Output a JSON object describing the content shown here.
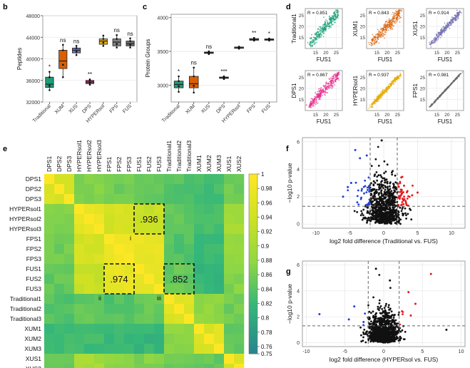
{
  "chart_data": [
    {
      "panel": "b",
      "type": "box",
      "ylabel": "Peptides",
      "ylim": [
        32000,
        48000
      ],
      "yticks": [
        "32000",
        "36000",
        "40000",
        "44000",
        "48000"
      ],
      "categories": [
        "Traditional",
        "XUM",
        "XUS",
        "DPS",
        "HYPERsol",
        "FPS",
        "FUS"
      ],
      "colors": [
        "#1b9e77",
        "#d95f02",
        "#7570b3",
        "#b3316e",
        "#e6ab02",
        "#7f7f7f",
        "#6e6e6e"
      ],
      "boxes": [
        {
          "min": 34200,
          "q1": 34700,
          "median": 35300,
          "q3": 36600,
          "max": 37600
        },
        {
          "min": 36600,
          "q1": 38200,
          "median": 39600,
          "q3": 41600,
          "max": 42600
        },
        {
          "min": 40700,
          "q1": 41100,
          "median": 41600,
          "q3": 42000,
          "max": 42400
        },
        {
          "min": 35200,
          "q1": 35400,
          "median": 35700,
          "q3": 36000,
          "max": 36200
        },
        {
          "min": 42400,
          "q1": 42700,
          "median": 43300,
          "q3": 43700,
          "max": 44300
        },
        {
          "min": 42100,
          "q1": 42400,
          "median": 43100,
          "q3": 43700,
          "max": 44400
        },
        {
          "min": 42100,
          "q1": 42400,
          "median": 42800,
          "q3": 43300,
          "max": 43800
        }
      ],
      "significance": [
        "*",
        "ns",
        "ns",
        "**",
        "",
        "ns",
        "ns"
      ]
    },
    {
      "panel": "c",
      "type": "box",
      "ylabel": "Protein Groups",
      "ylim": [
        2750,
        4050
      ],
      "yticks": [
        "3000",
        "3500",
        "4000"
      ],
      "categories": [
        "Traditional",
        "XUM",
        "XUS",
        "DPS",
        "HYPERsol",
        "FPS",
        "FUS"
      ],
      "colors": [
        "#1b9e77",
        "#d95f02",
        "#7570b3",
        "#b3316e",
        "#e6ab02",
        "#7f7f7f",
        "#6e6e6e"
      ],
      "boxes": [
        {
          "min": 2900,
          "q1": 2960,
          "median": 3010,
          "q3": 3060,
          "max": 3130
        },
        {
          "min": 2890,
          "q1": 2960,
          "median": 3020,
          "q3": 3130,
          "max": 3260
        },
        {
          "min": 3460,
          "q1": 3470,
          "median": 3480,
          "q3": 3490,
          "max": 3500
        },
        {
          "min": 3090,
          "q1": 3100,
          "median": 3110,
          "q3": 3120,
          "max": 3130
        },
        {
          "min": 3540,
          "q1": 3545,
          "median": 3555,
          "q3": 3565,
          "max": 3570
        },
        {
          "min": 3660,
          "q1": 3665,
          "median": 3675,
          "q3": 3690,
          "max": 3700
        },
        {
          "min": 3660,
          "q1": 3665,
          "median": 3675,
          "q3": 3685,
          "max": 3690
        }
      ],
      "significance": [
        "*",
        "ns",
        "ns",
        "***",
        "",
        "**",
        "*"
      ]
    },
    {
      "panel": "d",
      "type": "scatter",
      "xlabel": "FUS1",
      "xticks": [
        "15",
        "20",
        "25"
      ],
      "yticks": [
        "15",
        "20",
        "25"
      ],
      "xlim": [
        10,
        28
      ],
      "ylim": [
        10,
        28
      ],
      "plots": [
        {
          "ylabel": "Traditional1",
          "r": "R = 0.851",
          "color": "#1b9e77"
        },
        {
          "ylabel": "XUM1",
          "r": "R = 0.843",
          "color": "#d95f02"
        },
        {
          "ylabel": "XUS1",
          "r": "R = 0.914",
          "color": "#7570b3"
        },
        {
          "ylabel": "DPS1",
          "r": "R = 0.867",
          "color": "#e7298a"
        },
        {
          "ylabel": "HYPERsol1",
          "r": "R = 0.937",
          "color": "#e6ab02"
        },
        {
          "ylabel": "FPS1",
          "r": "R = 0.981",
          "color": "#666666"
        }
      ]
    },
    {
      "panel": "e",
      "type": "heatmap",
      "labels": [
        "DPS1",
        "DPS2",
        "DPS3",
        "HYPERsol1",
        "HYPERsol2",
        "HYPERsol3",
        "FPS1",
        "FPS2",
        "FPS3",
        "FUS1",
        "FUS2",
        "FUS3",
        "Traditional1",
        "Traditional2",
        "Traditional3",
        "XUM1",
        "XUM2",
        "XUM3",
        "XUS1",
        "XUS2"
      ],
      "groups": [
        {
          "name": "DPS",
          "start": 0,
          "end": 2
        },
        {
          "name": "HYPERsol",
          "start": 3,
          "end": 5
        },
        {
          "name": "FPS",
          "start": 6,
          "end": 8
        },
        {
          "name": "FUS",
          "start": 9,
          "end": 11
        },
        {
          "name": "Traditional",
          "start": 12,
          "end": 14
        },
        {
          "name": "XUM",
          "start": 15,
          "end": 17
        },
        {
          "name": "XUS",
          "start": 18,
          "end": 19
        }
      ],
      "group_corr": [
        [
          0.955,
          0.87,
          0.86,
          0.85,
          0.84,
          0.83,
          0.86
        ],
        [
          0.87,
          0.975,
          0.95,
          0.936,
          0.85,
          0.83,
          0.9
        ],
        [
          0.86,
          0.95,
          0.985,
          0.974,
          0.84,
          0.82,
          0.88
        ],
        [
          0.85,
          0.936,
          0.974,
          0.975,
          0.852,
          0.82,
          0.87
        ],
        [
          0.84,
          0.85,
          0.84,
          0.852,
          0.96,
          0.88,
          0.86
        ],
        [
          0.83,
          0.83,
          0.82,
          0.82,
          0.88,
          0.96,
          0.85
        ],
        [
          0.86,
          0.9,
          0.88,
          0.87,
          0.86,
          0.85,
          0.955
        ]
      ],
      "colorbar_ticks": [
        "1",
        "0.98",
        "0.96",
        "0.94",
        "0.92",
        "0.9",
        "0.88",
        "0.86",
        "0.84",
        "0.82",
        "0.8",
        "0.78",
        "0.76",
        "0.75"
      ],
      "range": [
        0.75,
        1.0
      ],
      "boxes": [
        {
          "value": ".936",
          "marker": "i",
          "rows": [
            3,
            5
          ],
          "cols": [
            9,
            11
          ]
        },
        {
          "value": ".974",
          "marker": "ii",
          "rows": [
            9,
            11
          ],
          "cols": [
            6,
            8
          ]
        },
        {
          "value": ".852",
          "marker": "iii",
          "rows": [
            9,
            11
          ],
          "cols": [
            12,
            14
          ]
        }
      ]
    },
    {
      "panel": "f",
      "type": "volcano",
      "xlabel": "log2 fold difference (Traditional vs. FUS)",
      "ylabel": "−log10 p-value",
      "xlim": [
        -12,
        12
      ],
      "ylim": [
        -0.3,
        6.3
      ],
      "xticks": [
        "-10",
        "-5",
        "0",
        "5",
        "10"
      ],
      "yticks": [
        "0",
        "2",
        "4",
        "6"
      ],
      "fc_cutoff": 2,
      "p_cutoff": 1.3,
      "up_color": "#e41a1c",
      "down_color": "#1f3fd6"
    },
    {
      "panel": "g",
      "type": "volcano",
      "xlabel": "log2 fold difference (HYPERsol vs. FUS)",
      "ylabel": "−log10 p-value",
      "xlim": [
        -10.5,
        10.5
      ],
      "ylim": [
        -0.3,
        6.3
      ],
      "xticks": [
        "-10",
        "-5",
        "0",
        "5",
        "10"
      ],
      "yticks": [
        "0",
        "2",
        "4",
        "6"
      ],
      "fc_cutoff": 2,
      "p_cutoff": 1.3,
      "up_color": "#e41a1c",
      "down_color": "#1f3fd6"
    }
  ]
}
